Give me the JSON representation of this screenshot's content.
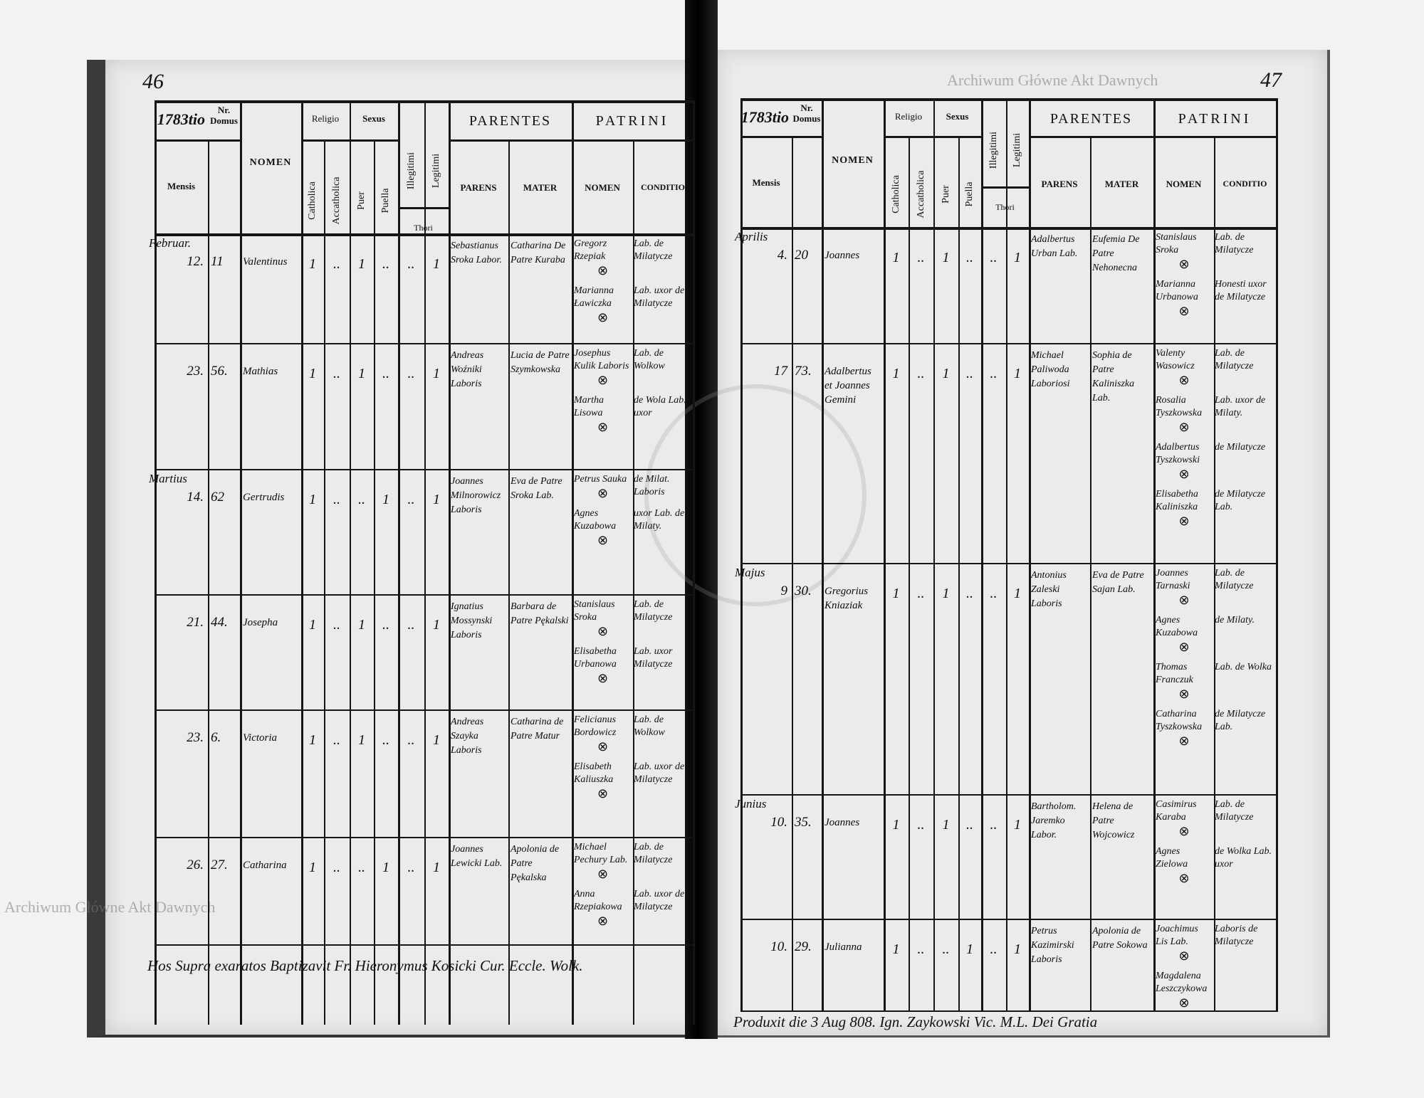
{
  "headers": {
    "nr_domus": "Nr. Domus",
    "mensis": "Mensis",
    "nomen": "NOMEN",
    "religio": "Religio",
    "sexus": "Sexus",
    "catholica": "Catholica",
    "accatholica": "Accatholica",
    "puer": "Puer",
    "puella": "Puella",
    "illegitimi": "Illegitimi",
    "legitimi": "Legitimi",
    "thori": "Thori",
    "parentes": "PARENTES",
    "patrini": "PATRINI",
    "parens": "PARENS",
    "mater": "MATER",
    "patrini_nomen": "NOMEN",
    "conditio": "CONDITIO"
  },
  "watermarks": {
    "top_right": "Archiwum Główne Akt Dawnych",
    "bottom_left": "Archiwum Główne Akt Dawnych"
  },
  "left_page": {
    "page_number": "46",
    "year": "1783tio",
    "entries": [
      {
        "month": "Februar.",
        "day": "12.",
        "domus": "11",
        "nomen": "Valentinus",
        "marks": [
          "1",
          "..",
          "1",
          "..",
          "..",
          "1"
        ],
        "parens": "Sebastianus Sroka Labor.",
        "mater": "Catharina De Patre Kuraba",
        "patrini": [
          {
            "nomen": "Gregorz Rzepiak",
            "conditio": "Lab. de Milatycze"
          },
          {
            "nomen": "Marianna Ławiczka",
            "conditio": "Lab. uxor de Milatycze"
          }
        ]
      },
      {
        "month": "",
        "day": "23.",
        "domus": "56.",
        "nomen": "Mathias",
        "marks": [
          "1",
          "..",
          "1",
          "..",
          "..",
          "1"
        ],
        "parens": "Andreas Woźniki Laboris",
        "mater": "Lucia de Patre Szymkowska",
        "patrini": [
          {
            "nomen": "Josephus Kulik Laboris",
            "conditio": "Lab. de Wolkow"
          },
          {
            "nomen": "Martha Lisowa",
            "conditio": "de Wola Lab. uxor"
          }
        ]
      },
      {
        "month": "Martius",
        "day": "14.",
        "domus": "62",
        "nomen": "Gertrudis",
        "marks": [
          "1",
          "..",
          "..",
          "1",
          "..",
          "1"
        ],
        "parens": "Joannes Milnorowicz Laboris",
        "mater": "Eva de Patre Sroka Lab.",
        "patrini": [
          {
            "nomen": "Petrus Sauka",
            "conditio": "de Milat. Laboris"
          },
          {
            "nomen": "Agnes Kuzabowa",
            "conditio": "uxor Lab. de Milaty."
          }
        ]
      },
      {
        "month": "",
        "day": "21.",
        "domus": "44.",
        "nomen": "Josepha",
        "marks": [
          "1",
          "..",
          "1",
          "..",
          "..",
          "1"
        ],
        "parens": "Ignatius Mossynski Laboris",
        "mater": "Barbara de Patre Pękalski",
        "patrini": [
          {
            "nomen": "Stanislaus Sroka",
            "conditio": "Lab. de Milatycze"
          },
          {
            "nomen": "Elisabetha Urbanowa",
            "conditio": "Lab. uxor Milatycze"
          }
        ]
      },
      {
        "month": "",
        "day": "23.",
        "domus": "6.",
        "nomen": "Victoria",
        "marks": [
          "1",
          "..",
          "1",
          "..",
          "..",
          "1"
        ],
        "parens": "Andreas Szayka Laboris",
        "mater": "Catharina de Patre Matur",
        "patrini": [
          {
            "nomen": "Felicianus Bordowicz",
            "conditio": "Lab. de Wolkow"
          },
          {
            "nomen": "Elisabeth Kaliuszka",
            "conditio": "Lab. uxor de Milatycze"
          }
        ]
      },
      {
        "month": "",
        "day": "26.",
        "domus": "27.",
        "nomen": "Catharina",
        "marks": [
          "1",
          "..",
          "..",
          "1",
          "..",
          "1"
        ],
        "parens": "Joannes Lewicki Lab.",
        "mater": "Apolonia de Patre Pękalska",
        "patrini": [
          {
            "nomen": "Michael Pechury Lab.",
            "conditio": "Lab. de Milatycze"
          },
          {
            "nomen": "Anna Rzepiakowa",
            "conditio": "Lab. uxor de Milatycze"
          }
        ]
      }
    ],
    "footer": "Hos Supra exaratos Baptizavit Fr. Hieronymus Kosicki Cur. Eccle. Wolk."
  },
  "right_page": {
    "page_number": "47",
    "year": "1783tio",
    "entries": [
      {
        "month": "Aprilis",
        "day": "4.",
        "domus": "20",
        "nomen": "Joannes",
        "marks": [
          "1",
          "..",
          "1",
          "..",
          "..",
          "1"
        ],
        "parens": "Adalbertus Urban Lab.",
        "mater": "Eufemia De Patre Nehonecna",
        "patrini": [
          {
            "nomen": "Stanislaus Sroka",
            "conditio": "Lab. de Milatycze"
          },
          {
            "nomen": "Marianna Urbanowa",
            "conditio": "Honesti uxor de Milatycze"
          }
        ]
      },
      {
        "month": "",
        "day": "17",
        "domus": "73.",
        "nomen": "Adalbertus et Joannes Gemini",
        "marks": [
          "1",
          "..",
          "1",
          "..",
          "..",
          "1"
        ],
        "parens": "Michael Paliwoda Laboriosi",
        "mater": "Sophia de Patre Kaliniszka Lab.",
        "patrini": [
          {
            "nomen": "Valenty Wasowicz",
            "conditio": "Lab. de Milatycze"
          },
          {
            "nomen": "Rosalia Tyszkowska",
            "conditio": "Lab. uxor de Milaty."
          },
          {
            "nomen": "Adalbertus Tyszkowski",
            "conditio": "de Milatycze"
          },
          {
            "nomen": "Elisabetha Kaliniszka",
            "conditio": "de Milatycze Lab."
          }
        ]
      },
      {
        "month": "Majus",
        "day": "9",
        "domus": "30.",
        "nomen": "Gregorius Kniaziak",
        "marks": [
          "1",
          "..",
          "1",
          "..",
          "..",
          "1"
        ],
        "parens": "Antonius Zaleski Laboris",
        "mater": "Eva de Patre Sajan Lab.",
        "patrini": [
          {
            "nomen": "Joannes Tarnaski",
            "conditio": "Lab. de Milatycze"
          },
          {
            "nomen": "Agnes Kuzabowa",
            "conditio": "de Milaty."
          },
          {
            "nomen": "Thomas Franczuk",
            "conditio": "Lab. de Wolka"
          },
          {
            "nomen": "Catharina Tyszkowska",
            "conditio": "de Milatycze Lab."
          }
        ]
      },
      {
        "month": "Junius",
        "day": "10.",
        "domus": "35.",
        "nomen": "Joannes",
        "marks": [
          "1",
          "..",
          "1",
          "..",
          "..",
          "1"
        ],
        "parens": "Bartholom. Jaremko Labor.",
        "mater": "Helena de Patre Wojcowicz",
        "patrini": [
          {
            "nomen": "Casimirus Karaba",
            "conditio": "Lab. de Milatycze"
          },
          {
            "nomen": "Agnes Zielowa",
            "conditio": "de Wolka Lab. uxor"
          }
        ]
      },
      {
        "month": "",
        "day": "10.",
        "domus": "29.",
        "nomen": "Julianna",
        "marks": [
          "1",
          "..",
          "..",
          "1",
          "..",
          "1"
        ],
        "parens": "Petrus Kazimirski Laboris",
        "mater": "Apolonia de Patre Sokowa",
        "patrini": [
          {
            "nomen": "Joachimus Lis Lab.",
            "conditio": "Laboris de Milatycze"
          },
          {
            "nomen": "Magdalena Leszczykowa",
            "conditio": ""
          }
        ]
      }
    ],
    "footer": "Produxit die 3 Aug 808. Ign. Zaykowski Vic. M.L. Dei Gratia"
  }
}
